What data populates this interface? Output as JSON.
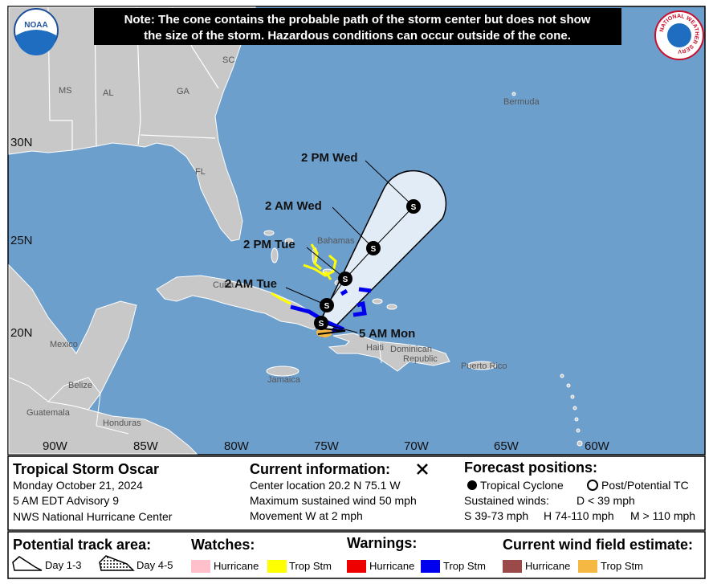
{
  "header": {
    "note": [
      "Note: The cone contains the probable path of the storm center but does not show",
      "the size of the storm. Hazardous conditions can occur outside of the cone."
    ],
    "noaa_logo": "NOAA",
    "nws_logo": "NATIONAL WEATHER SERVICE"
  },
  "map": {
    "states": [
      "MS",
      "AL",
      "GA",
      "SC",
      "FL"
    ],
    "places": [
      "Bermuda",
      "Bahamas",
      "Cuba",
      "Mexico",
      "Belize",
      "Guatemala",
      "Honduras",
      "Jamaica",
      "Haiti",
      "Puerto Rico"
    ],
    "dominican_republic": [
      "Dominican",
      "Republic"
    ],
    "lat_labels": [
      "30N",
      "25N",
      "20N"
    ],
    "lon_labels": [
      "90W",
      "85W",
      "80W",
      "75W",
      "70W",
      "65W",
      "60W"
    ],
    "forecast_points": [
      {
        "label": "5 AM Mon",
        "symbol": "S"
      },
      {
        "label": "2 AM Tue",
        "symbol": "S"
      },
      {
        "label": "2 PM Tue",
        "symbol": "S"
      },
      {
        "label": "2 AM Wed",
        "symbol": "S"
      },
      {
        "label": "2 PM Wed",
        "symbol": "S"
      }
    ]
  },
  "info": {
    "storm_name": "Tropical Storm Oscar",
    "date": "Monday October 21, 2024",
    "advisory": "5 AM EDT Advisory 9",
    "center": "NWS National Hurricane Center",
    "current_heading": "Current information:",
    "center_location": "Center location 20.2 N 75.1 W",
    "max_wind": "Maximum sustained wind 50 mph",
    "movement": "Movement W at 2 mph",
    "forecast_heading": "Forecast positions:",
    "tropical_cyclone": "Tropical Cyclone",
    "post_tc": "Post/Potential TC",
    "sustained_winds": "Sustained winds:",
    "d": "D < 39 mph",
    "s": "S 39-73 mph",
    "h": "H 74-110 mph",
    "m": "M > 110 mph"
  },
  "legend": {
    "track_heading": "Potential track area:",
    "day13": "Day 1-3",
    "day45": "Day 4-5",
    "watches_heading": "Watches:",
    "watch_hurricane": "Hurricane",
    "watch_trop": "Trop Stm",
    "warnings_heading": "Warnings:",
    "warning_hurricane": "Hurricane",
    "warning_trop": "Trop Stm",
    "wind_heading": "Current wind field estimate:",
    "wind_hurricane": "Hurricane",
    "wind_trop": "Trop Stm"
  }
}
